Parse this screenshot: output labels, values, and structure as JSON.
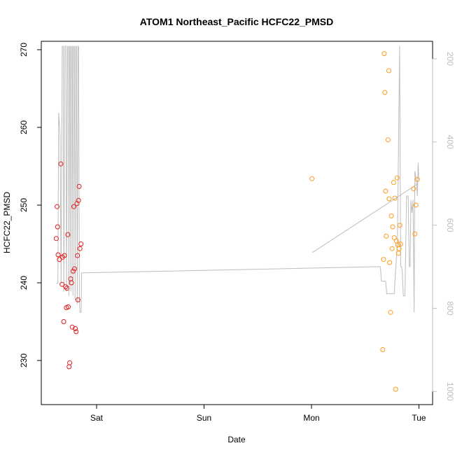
{
  "chart_data": {
    "type": "scatter",
    "title": "ATOM1 Northeast_Pacific HCFC22_PMSD",
    "xlabel": "Date",
    "ylabel": "HCFC22_PMSD",
    "xlim": [
      -0.438,
      3.105
    ],
    "ylim": [
      224.5,
      271.2
    ],
    "y2lim": [
      1020,
      170
    ],
    "x_ticks": [
      {
        "value": 0,
        "label": "Sat"
      },
      {
        "value": 1,
        "label": "Sun"
      },
      {
        "value": 2,
        "label": "Mon"
      },
      {
        "value": 3,
        "label": "Tue"
      }
    ],
    "y_ticks": [
      230,
      240,
      250,
      260,
      270
    ],
    "y2_ticks": [
      200,
      400,
      600,
      800,
      1000
    ],
    "y2_color": "#bebebe",
    "grid": false,
    "series": [
      {
        "color": "#e41a1c",
        "points": [
          [
            -0.375,
            245.7
          ],
          [
            -0.368,
            249.8
          ],
          [
            -0.363,
            247.2
          ],
          [
            -0.358,
            243.6
          ],
          [
            -0.345,
            243.0
          ],
          [
            -0.333,
            255.3
          ],
          [
            -0.322,
            239.8
          ],
          [
            -0.317,
            243.3
          ],
          [
            -0.3,
            243.5
          ],
          [
            -0.288,
            239.5
          ],
          [
            -0.281,
            236.8
          ],
          [
            -0.276,
            239.3
          ],
          [
            -0.268,
            246.2
          ],
          [
            -0.264,
            236.9
          ],
          [
            -0.256,
            229.2
          ],
          [
            -0.25,
            229.7
          ],
          [
            -0.241,
            240.5
          ],
          [
            -0.234,
            240.0
          ],
          [
            -0.227,
            234.3
          ],
          [
            -0.218,
            241.5
          ],
          [
            -0.212,
            249.8
          ],
          [
            -0.206,
            241.8
          ],
          [
            -0.198,
            234.1
          ],
          [
            -0.19,
            233.7
          ],
          [
            -0.183,
            250.2
          ],
          [
            -0.178,
            243.5
          ],
          [
            -0.173,
            237.8
          ],
          [
            -0.168,
            250.6
          ],
          [
            -0.162,
            252.4
          ],
          [
            -0.155,
            244.4
          ],
          [
            -0.145,
            245.0
          ],
          [
            -0.306,
            235.0
          ]
        ]
      },
      {
        "color": "#ff9a1a",
        "points": [
          [
            2.004,
            253.4
          ],
          [
            2.663,
            231.4
          ],
          [
            2.67,
            243.0
          ],
          [
            2.677,
            269.5
          ],
          [
            2.683,
            264.5
          ],
          [
            2.69,
            251.8
          ],
          [
            2.696,
            246.0
          ],
          [
            2.713,
            258.4
          ],
          [
            2.722,
            250.8
          ],
          [
            2.728,
            242.6
          ],
          [
            2.736,
            236.2
          ],
          [
            2.743,
            248.6
          ],
          [
            2.75,
            244.4
          ],
          [
            2.756,
            247.2
          ],
          [
            2.764,
            252.9
          ],
          [
            2.77,
            245.8
          ],
          [
            2.776,
            250.9
          ],
          [
            2.783,
            226.3
          ],
          [
            2.79,
            245.4
          ],
          [
            2.797,
            253.5
          ],
          [
            2.803,
            244.9
          ],
          [
            2.809,
            243.8
          ],
          [
            2.815,
            244.4
          ],
          [
            2.822,
            247.4
          ],
          [
            2.829,
            245.0
          ],
          [
            2.72,
            267.3
          ],
          [
            2.95,
            252.1
          ],
          [
            2.963,
            246.3
          ],
          [
            2.972,
            250.0
          ],
          [
            2.985,
            253.3
          ]
        ]
      },
      {
        "color": "#bebebe",
        "axis": "right",
        "points": [
          [
            -0.375,
            740
          ],
          [
            -0.36,
            740
          ],
          [
            -0.353,
            330
          ],
          [
            -0.34,
            380
          ],
          [
            -0.33,
            740
          ],
          [
            -0.32,
            170
          ],
          [
            -0.31,
            170
          ],
          [
            -0.305,
            760
          ],
          [
            -0.295,
            170
          ],
          [
            -0.285,
            170
          ],
          [
            -0.28,
            760
          ],
          [
            -0.27,
            170
          ],
          [
            -0.262,
            170
          ],
          [
            -0.258,
            770
          ],
          [
            -0.25,
            170
          ],
          [
            -0.244,
            170
          ],
          [
            -0.24,
            760
          ],
          [
            -0.232,
            170
          ],
          [
            -0.226,
            170
          ],
          [
            -0.22,
            770
          ],
          [
            -0.214,
            170
          ],
          [
            -0.207,
            170
          ],
          [
            -0.2,
            780
          ],
          [
            -0.194,
            170
          ],
          [
            -0.188,
            170
          ],
          [
            -0.18,
            790
          ],
          [
            -0.174,
            170
          ],
          [
            -0.168,
            170
          ],
          [
            -0.16,
            770
          ],
          [
            -0.155,
            810
          ],
          [
            -0.143,
            810
          ],
          [
            -0.14,
            715
          ],
          [
            2.62,
            700
          ],
          [
            2.642,
            700
          ],
          [
            2.65,
            735
          ],
          [
            2.69,
            735
          ],
          [
            2.7,
            765
          ],
          [
            2.77,
            765
          ],
          [
            2.785,
            700
          ],
          [
            2.8,
            640
          ],
          [
            2.81,
            410
          ],
          [
            2.82,
            170
          ],
          [
            2.83,
            700
          ],
          [
            2.838,
            700
          ],
          [
            2.845,
            710
          ],
          [
            2.855,
            770
          ],
          [
            2.87,
            770
          ],
          [
            2.885,
            530
          ],
          [
            2.9,
            530
          ],
          [
            2.91,
            700
          ],
          [
            2.918,
            700
          ],
          [
            2.925,
            540
          ],
          [
            2.935,
            570
          ],
          [
            2.945,
            540
          ],
          [
            2.955,
            810
          ],
          [
            2.962,
            470
          ],
          [
            2.975,
            490
          ],
          [
            2.985,
            530
          ],
          [
            2.993,
            450
          ],
          [
            2.998,
            490
          ]
        ]
      },
      {
        "color": "#bebebe",
        "axis": "right",
        "points": [
          [
            2.008,
            666
          ],
          [
            2.993,
            500
          ]
        ]
      }
    ]
  }
}
